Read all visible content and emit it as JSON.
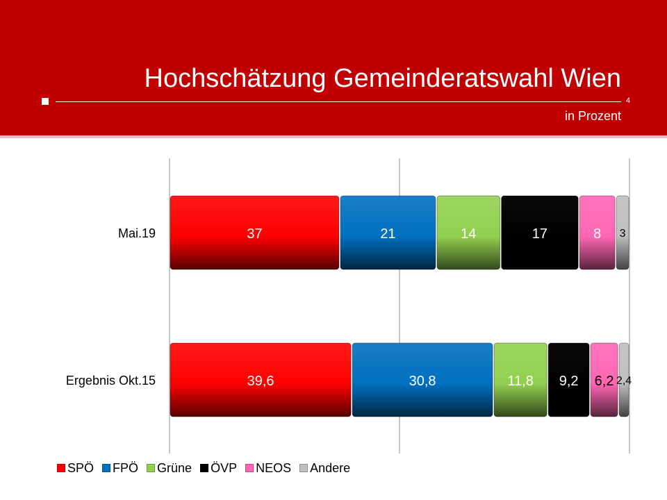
{
  "header": {
    "title": "Hochschätzung Gemeinderatswahl Wien",
    "subtitle": "in Prozent",
    "page_number": "4"
  },
  "chart_data": {
    "type": "bar",
    "orientation": "horizontal",
    "stacked": true,
    "categories": [
      "Mai.19",
      "Ergebnis Okt.15"
    ],
    "series": [
      {
        "name": "SPÖ",
        "color": "#ff0000",
        "values": [
          37,
          39.6
        ],
        "labels": [
          "37",
          "39,6"
        ]
      },
      {
        "name": "FPÖ",
        "color": "#0070c0",
        "values": [
          21,
          30.8
        ],
        "labels": [
          "21",
          "30,8"
        ]
      },
      {
        "name": "Grüne",
        "color": "#92d050",
        "values": [
          14,
          11.8
        ],
        "labels": [
          "14",
          "11,8"
        ]
      },
      {
        "name": "ÖVP",
        "color": "#000000",
        "values": [
          17,
          9.2
        ],
        "labels": [
          "17",
          "9,2"
        ]
      },
      {
        "name": "NEOS",
        "color": "#ff66b3",
        "values": [
          8,
          6.2
        ],
        "labels": [
          "8",
          "6,2"
        ]
      },
      {
        "name": "Andere",
        "color": "#bfbfbf",
        "values": [
          3,
          2.4
        ],
        "labels": [
          "3",
          "2,4"
        ]
      }
    ],
    "xlim": [
      0,
      100
    ],
    "gridlines": [
      0,
      50,
      100
    ],
    "legend_position": "bottom-left",
    "title": "Hochschätzung Gemeinderatswahl Wien"
  }
}
